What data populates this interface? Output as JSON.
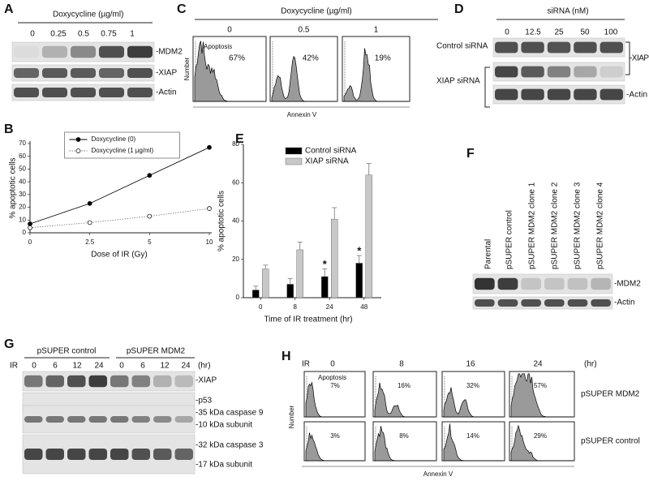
{
  "panel_labels": [
    "A",
    "B",
    "C",
    "D",
    "E",
    "F",
    "G",
    "H"
  ],
  "panel_a": {
    "treatment": "Doxycycline (µg/ml)",
    "lanes": [
      "0",
      "0.25",
      "0.5",
      "0.75",
      "1"
    ],
    "bands": [
      "-MDM2",
      "-XIAP",
      "-Actin"
    ]
  },
  "panel_c": {
    "treatment": "Doxycycline (µg/ml)",
    "doses": [
      "0",
      "0.5",
      "1"
    ],
    "gate_label": "Apoptosis",
    "percentages": [
      "67%",
      "42%",
      "19%"
    ],
    "y_label": "Number",
    "x_label": "Annexin V"
  },
  "panel_d": {
    "treatment": "siRNA (nM)",
    "lanes": [
      "0",
      "12.5",
      "25",
      "50",
      "100"
    ],
    "rows": [
      "Control siRNA",
      "XIAP siRNA"
    ],
    "bands": [
      "-XIAP",
      "-Actin"
    ]
  },
  "panel_f": {
    "lanes": [
      "Parental",
      "pSUPER control",
      "pSUPER MDM2 clone 1",
      "pSUPER MDM2 clone 2",
      "pSUPER MDM2 clone 3",
      "pSUPER MDM2 clone 4"
    ],
    "bands": [
      "-MDM2",
      "-Actin"
    ]
  },
  "panel_g": {
    "groups": [
      "pSUPER control",
      "pSUPER MDM2"
    ],
    "treatment": "IR",
    "lanes": [
      "0",
      "6",
      "12",
      "24",
      "0",
      "6",
      "12",
      "24"
    ],
    "unit": "(hr)",
    "bands": [
      "-XIAP",
      "-p53",
      "-35 kDa caspase 9",
      "-10 kDa subunit",
      "-32 kDa caspase 3",
      "-17 kDa subunit"
    ]
  },
  "panel_h": {
    "treatment": "IR",
    "times": [
      "0",
      "8",
      "16",
      "24"
    ],
    "unit": "(hr)",
    "gate_label": "Apoptosis",
    "rows": [
      {
        "name": "pSUPER MDM2",
        "percentages": [
          "7%",
          "16%",
          "32%",
          "57%"
        ]
      },
      {
        "name": "pSUPER control",
        "percentages": [
          "3%",
          "8%",
          "14%",
          "29%"
        ]
      }
    ],
    "y_label": "Number",
    "x_label": "Annexin V"
  },
  "chart_data": [
    {
      "type": "line",
      "y_label": "% apoptotic cells",
      "x_label": "Dose of IR (Gy)",
      "categories": [
        "0",
        "2.5",
        "5",
        "10"
      ],
      "series": [
        {
          "name": "Doxycycline (0)",
          "color": "#000000",
          "marker": "filled",
          "line_style": "solid",
          "values": [
            7,
            23,
            45,
            67
          ]
        },
        {
          "name": "Doxycycline (1 µg/ml)",
          "color": "#777777",
          "marker": "open",
          "line_style": "dotted",
          "values": [
            4,
            8,
            13,
            19
          ]
        }
      ],
      "ylim": [
        0,
        70
      ],
      "yticks": [
        0,
        10,
        20,
        30,
        40,
        50,
        60,
        70
      ],
      "legend": "top"
    },
    {
      "type": "bar",
      "y_label": "% apoptotic cells",
      "x_label": "Time of IR treatment (hr)",
      "categories": [
        "0",
        "8",
        "24",
        "48"
      ],
      "series": [
        {
          "name": "Control siRNA",
          "color": "#000000",
          "values": [
            4,
            7,
            11,
            18
          ],
          "errors": [
            2,
            3,
            4,
            4
          ],
          "significance": [
            null,
            null,
            "*",
            "*"
          ]
        },
        {
          "name": "XIAP siRNA",
          "color": "#c8c8c8",
          "values": [
            15,
            25,
            41,
            64
          ],
          "errors": [
            2,
            4,
            6,
            6
          ]
        }
      ],
      "ylim": [
        0,
        80
      ],
      "yticks": [
        0,
        20,
        40,
        60,
        80
      ],
      "legend": "top-left"
    }
  ]
}
